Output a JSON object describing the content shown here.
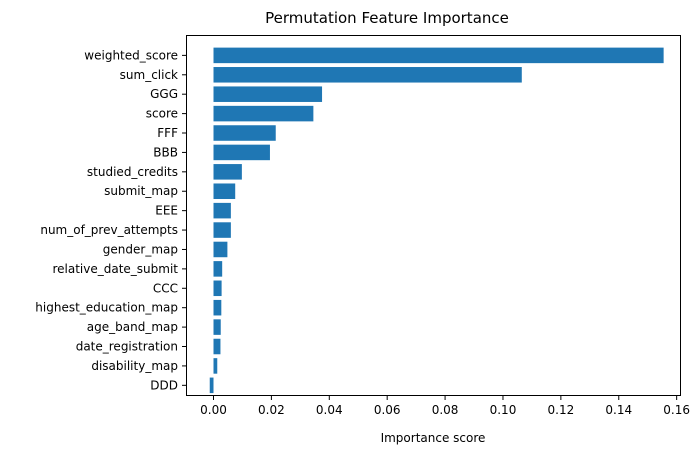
{
  "chart_data": {
    "type": "bar",
    "orientation": "horizontal",
    "title": "Permutation Feature Importance",
    "xlabel": "Importance score",
    "ylabel": "",
    "xlim": [
      -0.0095,
      0.1615
    ],
    "xticks": [
      0.0,
      0.02,
      0.04,
      0.06,
      0.08,
      0.1,
      0.12,
      0.14,
      0.16
    ],
    "xtick_labels": [
      "0.00",
      "0.02",
      "0.04",
      "0.06",
      "0.08",
      "0.10",
      "0.12",
      "0.14",
      "0.16"
    ],
    "grid": false,
    "bar_color": "#1f77b4",
    "categories": [
      "weighted_score",
      "sum_click",
      "GGG",
      "score",
      "FFF",
      "BBB",
      "studied_credits",
      "submit_map",
      "EEE",
      "num_of_prev_attempts",
      "gender_map",
      "relative_date_submit",
      "CCC",
      "highest_education_map",
      "age_band_map",
      "date_registration",
      "disability_map",
      "DDD"
    ],
    "values": [
      0.1555,
      0.1065,
      0.0375,
      0.0345,
      0.0215,
      0.0195,
      0.0098,
      0.0075,
      0.006,
      0.006,
      0.0048,
      0.003,
      0.0028,
      0.0027,
      0.0025,
      0.0024,
      0.0013,
      -0.0013
    ]
  }
}
